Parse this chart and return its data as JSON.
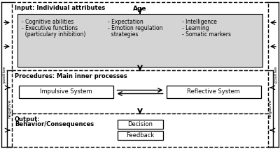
{
  "bg_color": "#ffffff",
  "input_label": "Input: Individual attributes",
  "proc_label": "Procedures: Main inner processes",
  "output_label_line1": "Output:",
  "output_label_line2": "Behavior/Consequences",
  "age_label": "Age",
  "col1_items": [
    "- Cognitive abilities",
    "- Executive functions",
    "  (particulary inhibition)"
  ],
  "col2_items": [
    "- Expectation",
    "- Emotion regulation",
    "  strategies"
  ],
  "col3_items": [
    "- Intelligence",
    "- Learning",
    "- Somatic markers"
  ],
  "impulsive_label": "Impulsive System",
  "reflective_label": "Reflective System",
  "decision_label": "Decision",
  "feedback_label": "Feedback",
  "label_positive": "positive",
  "label_negative": "negative"
}
